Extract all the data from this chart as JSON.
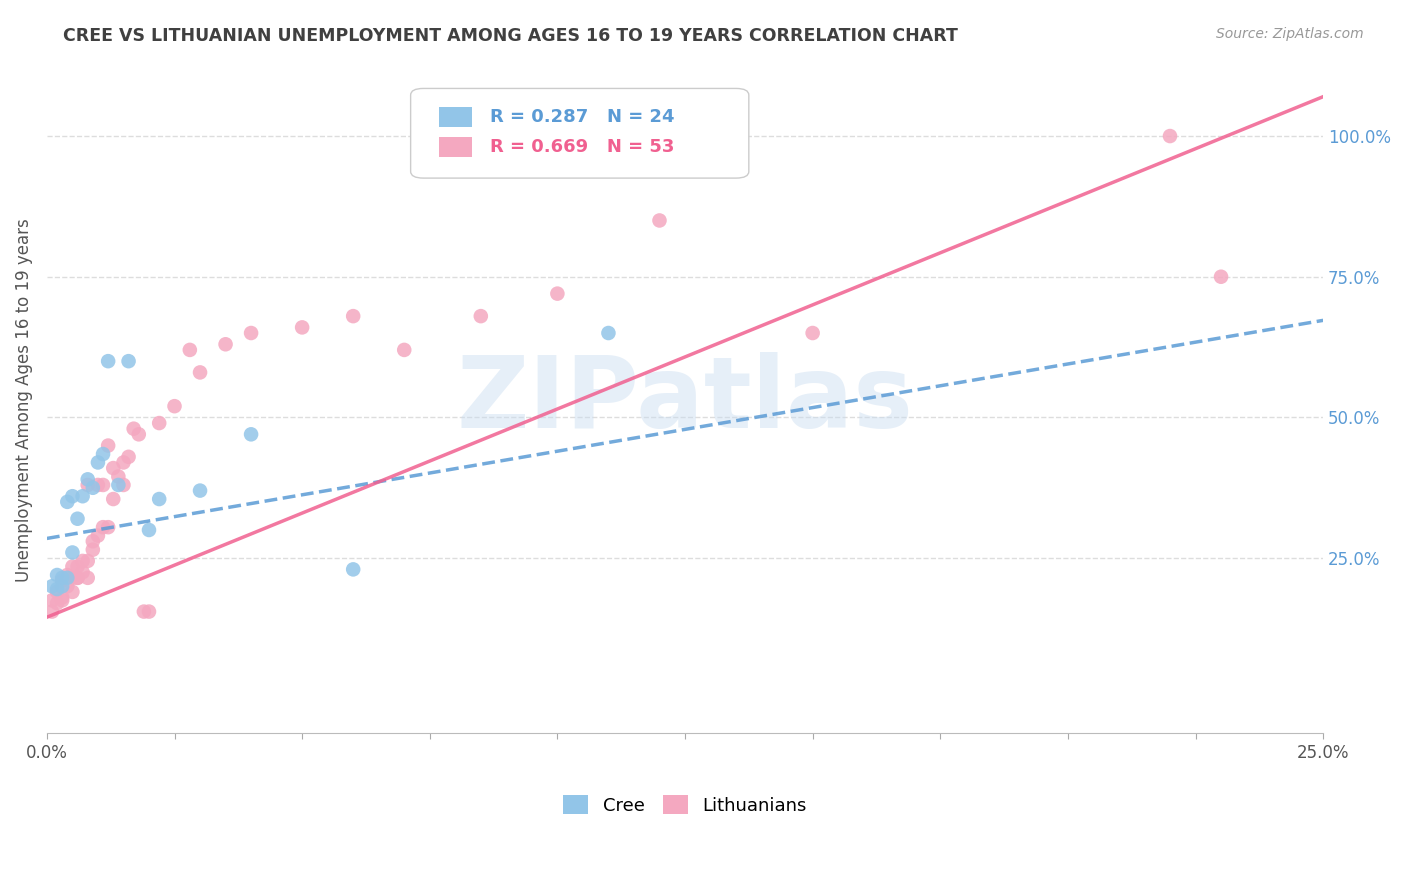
{
  "title": "CREE VS LITHUANIAN UNEMPLOYMENT AMONG AGES 16 TO 19 YEARS CORRELATION CHART",
  "source": "Source: ZipAtlas.com",
  "ylabel": "Unemployment Among Ages 16 to 19 years",
  "watermark": "ZIPatlas",
  "legend_blue_r": "R = 0.287",
  "legend_blue_n": "N = 24",
  "legend_pink_r": "R = 0.669",
  "legend_pink_n": "N = 53",
  "blue_color": "#92C5E8",
  "pink_color": "#F4A8C0",
  "blue_line_color": "#5B9BD5",
  "pink_line_color": "#F06090",
  "background_color": "#FFFFFF",
  "title_color": "#404040",
  "right_axis_color": "#5B9BD5",
  "cree_x": [
    0.001,
    0.002,
    0.002,
    0.003,
    0.003,
    0.004,
    0.004,
    0.005,
    0.005,
    0.006,
    0.007,
    0.008,
    0.009,
    0.01,
    0.011,
    0.012,
    0.014,
    0.016,
    0.02,
    0.022,
    0.03,
    0.04,
    0.06,
    0.11
  ],
  "cree_y": [
    0.2,
    0.195,
    0.22,
    0.2,
    0.215,
    0.215,
    0.35,
    0.36,
    0.26,
    0.32,
    0.36,
    0.39,
    0.375,
    0.42,
    0.435,
    0.6,
    0.38,
    0.6,
    0.3,
    0.355,
    0.37,
    0.47,
    0.23,
    0.65
  ],
  "lith_x": [
    0.001,
    0.001,
    0.002,
    0.002,
    0.003,
    0.003,
    0.003,
    0.004,
    0.004,
    0.005,
    0.005,
    0.005,
    0.006,
    0.006,
    0.006,
    0.007,
    0.007,
    0.008,
    0.008,
    0.008,
    0.009,
    0.009,
    0.01,
    0.01,
    0.011,
    0.011,
    0.012,
    0.012,
    0.013,
    0.013,
    0.014,
    0.015,
    0.015,
    0.016,
    0.017,
    0.018,
    0.019,
    0.02,
    0.022,
    0.025,
    0.028,
    0.03,
    0.035,
    0.04,
    0.05,
    0.06,
    0.07,
    0.085,
    0.1,
    0.12,
    0.15,
    0.22,
    0.23
  ],
  "lith_y": [
    0.175,
    0.155,
    0.17,
    0.19,
    0.18,
    0.175,
    0.21,
    0.2,
    0.22,
    0.19,
    0.215,
    0.235,
    0.215,
    0.235,
    0.215,
    0.225,
    0.245,
    0.215,
    0.245,
    0.38,
    0.265,
    0.28,
    0.29,
    0.38,
    0.305,
    0.38,
    0.305,
    0.45,
    0.355,
    0.41,
    0.395,
    0.38,
    0.42,
    0.43,
    0.48,
    0.47,
    0.155,
    0.155,
    0.49,
    0.52,
    0.62,
    0.58,
    0.63,
    0.65,
    0.66,
    0.68,
    0.62,
    0.68,
    0.72,
    0.85,
    0.65,
    1.0,
    0.75
  ],
  "xlim": [
    0.0,
    0.25
  ],
  "ylim": [
    -0.06,
    1.12
  ],
  "blue_line_x": [
    0.0,
    0.25
  ],
  "blue_line_y_intercept": 0.285,
  "blue_line_slope": 1.55,
  "pink_line_x": [
    0.0,
    0.25
  ],
  "pink_line_y_intercept": 0.145,
  "pink_line_slope": 3.7
}
